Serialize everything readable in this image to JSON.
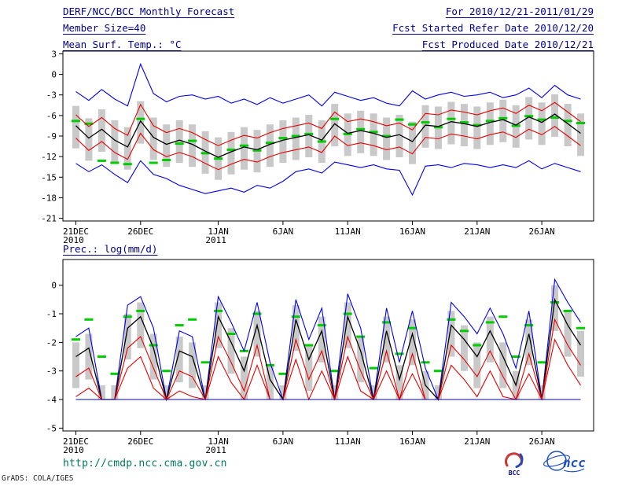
{
  "header": {
    "title": "DERF/NCC/BCC Monthly Forecast",
    "for_range": "For 2010/12/21-2011/01/29",
    "member_size": "Member Size=40",
    "fcst_started": "Fcst Started Refer Date 2010/12/20",
    "fcst_produced": "Fcst Produced Date 2010/12/21"
  },
  "footer": {
    "url": "http://cmdp.ncc.cma.gov.cn",
    "credit": "GrADS: COLA/IGES",
    "logos": {
      "bcc": "BCC",
      "ncc": "ncc"
    }
  },
  "colors": {
    "header": "#00008b",
    "url": "#007a5e",
    "frame": "#000000",
    "bar": "#c9c9c9",
    "obs_green": "#00cc00",
    "ens_blue": "#0000f0",
    "quartile_red": "#e60000",
    "mean_black": "#000000"
  },
  "chart_data": [
    {
      "type": "line",
      "title": "Mean Surf. Temp.: °C",
      "xlabel": "",
      "ylabel": "",
      "grid": false,
      "legend": "none",
      "n": 40,
      "ylim": [
        -21.4,
        3.4
      ],
      "yticks": [
        3,
        0,
        -3,
        -6,
        -9,
        -12,
        -15,
        -18,
        -21
      ],
      "xticks": [
        {
          "i": 0,
          "label": "21DEC",
          "sub": "2010"
        },
        {
          "i": 5,
          "label": "26DEC"
        },
        {
          "i": 11,
          "label": "1JAN",
          "sub": "2011"
        },
        {
          "i": 16,
          "label": "6JAN"
        },
        {
          "i": 21,
          "label": "11JAN"
        },
        {
          "i": 26,
          "label": "16JAN"
        },
        {
          "i": 31,
          "label": "21JAN"
        },
        {
          "i": 36,
          "label": "26JAN"
        }
      ],
      "bars": {
        "name": "ensemble-spread",
        "color": "#c9c9c9",
        "low": [
          -10.8,
          -12.6,
          -11.3,
          -12.9,
          -13.9,
          -10.1,
          -12.5,
          -13.5,
          -12.9,
          -13.5,
          -14.5,
          -15.4,
          -14.6,
          -13.9,
          -14.3,
          -13.5,
          -12.9,
          -12.5,
          -12.1,
          -12.9,
          -10.5,
          -11.9,
          -11.5,
          -11.9,
          -12.5,
          -12.1,
          -13.1,
          -10.7,
          -10.9,
          -10.2,
          -10.5,
          -10.9,
          -10.3,
          -9.9,
          -10.7,
          -9.5,
          -10.3,
          -9.1,
          -10.5,
          -11.9
        ],
        "high": [
          -4.6,
          -6.4,
          -5.1,
          -6.7,
          -7.7,
          -3.9,
          -6.3,
          -7.3,
          -6.7,
          -7.3,
          -8.3,
          -9.2,
          -8.4,
          -7.7,
          -8.1,
          -7.3,
          -6.7,
          -6.3,
          -5.9,
          -6.7,
          -4.3,
          -5.7,
          -5.3,
          -5.7,
          -6.3,
          -5.9,
          -6.9,
          -4.5,
          -4.7,
          -4.0,
          -4.3,
          -4.7,
          -4.1,
          -3.7,
          -4.5,
          -3.3,
          -4.1,
          -2.9,
          -4.3,
          -5.7
        ]
      },
      "obs": {
        "name": "observation",
        "color": "#00cc00",
        "values": [
          -6.8,
          -7.2,
          -12.6,
          -12.9,
          -13.1,
          -6.5,
          -12.9,
          -12.5,
          -10.1,
          -9.7,
          -11.5,
          -12.3,
          -11.0,
          -10.4,
          -11.1,
          -10.0,
          -9.3,
          -9.0,
          -8.7,
          -9.8,
          -6.5,
          -8.7,
          -8.0,
          -8.4,
          -9.0,
          -6.6,
          -7.3,
          -7.0,
          -7.7,
          -6.5,
          -7.0,
          -7.4,
          -6.8,
          -6.4,
          -7.5,
          -6.1,
          -6.6,
          -6.3,
          -6.8,
          -7.1
        ]
      },
      "series": [
        {
          "name": "ens-max",
          "color": "#0000f0",
          "width": 1.1,
          "values": [
            -2.5,
            -3.8,
            -2.2,
            -3.6,
            -4.6,
            1.5,
            -2.8,
            -4.0,
            -3.2,
            -3.0,
            -3.6,
            -3.2,
            -4.2,
            -3.6,
            -4.4,
            -3.4,
            -4.2,
            -3.6,
            -3.0,
            -4.6,
            -2.6,
            -3.2,
            -3.8,
            -3.4,
            -4.2,
            -4.6,
            -2.4,
            -3.6,
            -3.0,
            -2.6,
            -3.2,
            -3.0,
            -2.6,
            -3.4,
            -3.0,
            -2.0,
            -3.4,
            -1.6,
            -3.0,
            -3.6
          ]
        },
        {
          "name": "upper-quartile",
          "color": "#e60000",
          "width": 1.1,
          "values": [
            -5.9,
            -7.6,
            -6.3,
            -7.9,
            -8.9,
            -4.4,
            -7.5,
            -8.5,
            -7.9,
            -8.5,
            -9.5,
            -10.4,
            -9.6,
            -8.9,
            -9.3,
            -8.5,
            -7.9,
            -7.5,
            -7.1,
            -7.9,
            -5.5,
            -6.9,
            -6.5,
            -6.9,
            -7.5,
            -7.1,
            -8.1,
            -5.7,
            -5.9,
            -5.2,
            -5.5,
            -5.9,
            -5.3,
            -4.9,
            -5.7,
            -4.5,
            -5.3,
            -4.1,
            -5.5,
            -6.9
          ]
        },
        {
          "name": "ens-mean",
          "color": "#000000",
          "width": 1.3,
          "values": [
            -7.5,
            -9.3,
            -8.0,
            -9.6,
            -10.6,
            -6.8,
            -9.2,
            -10.2,
            -9.6,
            -10.2,
            -11.2,
            -12.1,
            -11.3,
            -10.6,
            -11.0,
            -10.2,
            -9.6,
            -9.2,
            -8.8,
            -9.6,
            -7.2,
            -8.6,
            -8.2,
            -8.6,
            -9.2,
            -8.8,
            -9.8,
            -7.4,
            -7.6,
            -6.9,
            -7.2,
            -7.6,
            -7.0,
            -6.6,
            -7.4,
            -6.2,
            -7.0,
            -5.8,
            -7.2,
            -8.6
          ]
        },
        {
          "name": "lower-quartile",
          "color": "#e60000",
          "width": 1.1,
          "values": [
            -9.3,
            -11.1,
            -9.8,
            -11.4,
            -12.4,
            -8.6,
            -11.0,
            -12.0,
            -11.4,
            -12.0,
            -13.0,
            -13.9,
            -13.1,
            -12.4,
            -12.8,
            -12.0,
            -11.4,
            -11.0,
            -10.6,
            -11.4,
            -9.0,
            -10.4,
            -10.0,
            -10.4,
            -11.0,
            -10.6,
            -11.6,
            -9.2,
            -9.4,
            -8.7,
            -9.0,
            -9.4,
            -8.8,
            -8.4,
            -9.2,
            -8.0,
            -8.8,
            -7.6,
            -9.0,
            -10.4
          ]
        },
        {
          "name": "ens-min",
          "color": "#0000f0",
          "width": 1.1,
          "values": [
            -13.0,
            -14.2,
            -13.2,
            -14.6,
            -15.8,
            -12.6,
            -14.6,
            -15.2,
            -16.2,
            -16.8,
            -17.4,
            -17.0,
            -16.6,
            -17.2,
            -16.2,
            -16.6,
            -15.6,
            -14.2,
            -13.8,
            -14.4,
            -12.8,
            -13.2,
            -13.6,
            -13.2,
            -13.8,
            -14.0,
            -17.6,
            -13.4,
            -13.2,
            -13.6,
            -13.0,
            -13.2,
            -13.6,
            -13.2,
            -13.6,
            -12.6,
            -13.8,
            -13.0,
            -13.6,
            -14.2
          ]
        }
      ]
    },
    {
      "type": "line",
      "title": "Prec.: log(mm/d)",
      "xlabel": "",
      "ylabel": "",
      "grid": false,
      "legend": "none",
      "n": 40,
      "ylim": [
        -5.1,
        0.9
      ],
      "yticks": [
        0,
        -1,
        -2,
        -3,
        -4,
        -5
      ],
      "xticks": [
        {
          "i": 0,
          "label": "21DEC",
          "sub": "2010"
        },
        {
          "i": 5,
          "label": "26DEC"
        },
        {
          "i": 11,
          "label": "1JAN",
          "sub": "2011"
        },
        {
          "i": 16,
          "label": "6JAN"
        },
        {
          "i": 21,
          "label": "11JAN"
        },
        {
          "i": 26,
          "label": "16JAN"
        },
        {
          "i": 31,
          "label": "21JAN"
        },
        {
          "i": 36,
          "label": "26JAN"
        }
      ],
      "bars": {
        "name": "ensemble-spread",
        "color": "#c9c9c9",
        "low": [
          -3.6,
          -3.3,
          -4.0,
          -4.0,
          -2.6,
          -2.2,
          -3.3,
          -4.0,
          -3.4,
          -3.6,
          -4.0,
          -2.2,
          -3.1,
          -4.0,
          -2.5,
          -4.0,
          -4.0,
          -2.3,
          -3.7,
          -2.7,
          -4.0,
          -2.2,
          -3.4,
          -4.0,
          -2.7,
          -4.0,
          -2.8,
          -4.0,
          -4.0,
          -2.5,
          -3.0,
          -3.6,
          -2.7,
          -3.6,
          -4.0,
          -2.8,
          -4.0,
          -1.6,
          -2.5,
          -3.2
        ],
        "high": [
          -2.0,
          -1.7,
          -3.5,
          -3.5,
          -1.0,
          -0.6,
          -1.7,
          -3.5,
          -1.8,
          -2.0,
          -3.5,
          -0.6,
          -1.5,
          -2.5,
          -0.9,
          -2.8,
          -3.5,
          -0.7,
          -2.1,
          -1.1,
          -3.5,
          -0.6,
          -1.8,
          -3.5,
          -1.1,
          -2.8,
          -1.2,
          -3.0,
          -3.5,
          -0.9,
          -1.4,
          -2.0,
          -1.1,
          -2.0,
          -3.0,
          -1.2,
          -3.5,
          0.0,
          -0.9,
          -1.6
        ]
      },
      "obs": {
        "name": "observation",
        "color": "#00cc00",
        "values": [
          -1.9,
          -1.2,
          -2.5,
          -3.1,
          -1.1,
          -0.9,
          -2.1,
          -3.0,
          -1.4,
          -1.2,
          -2.7,
          -0.9,
          -1.7,
          -2.3,
          -1.0,
          -2.8,
          -3.1,
          -1.1,
          -2.1,
          -1.4,
          -3.0,
          -1.0,
          -1.8,
          -2.9,
          -1.3,
          -2.4,
          -1.5,
          -2.7,
          -3.0,
          -1.2,
          -1.6,
          -2.1,
          -1.3,
          -1.1,
          -2.5,
          -1.4,
          -2.7,
          -0.6,
          -0.9,
          -1.5
        ]
      },
      "series": [
        {
          "name": "ens-max",
          "color": "#0000f0",
          "width": 1.1,
          "values": [
            -1.8,
            -1.5,
            -4.0,
            -4.0,
            -0.7,
            -0.4,
            -1.5,
            -4.0,
            -1.6,
            -1.8,
            -4.0,
            -0.4,
            -1.3,
            -2.3,
            -0.6,
            -2.7,
            -4.0,
            -0.5,
            -1.9,
            -0.8,
            -4.0,
            -0.3,
            -1.5,
            -4.0,
            -0.8,
            -2.7,
            -0.9,
            -2.9,
            -4.0,
            -0.6,
            -1.1,
            -1.7,
            -0.8,
            -1.7,
            -2.9,
            -0.9,
            -4.0,
            0.2,
            -0.6,
            -1.3
          ]
        },
        {
          "name": "ens-mean",
          "color": "#000000",
          "width": 1.3,
          "values": [
            -2.5,
            -2.2,
            -4.0,
            -4.0,
            -1.5,
            -1.1,
            -2.2,
            -4.0,
            -2.3,
            -2.5,
            -4.0,
            -1.1,
            -2.0,
            -3.0,
            -1.4,
            -3.3,
            -4.0,
            -1.2,
            -2.6,
            -1.6,
            -4.0,
            -1.1,
            -2.3,
            -4.0,
            -1.6,
            -3.3,
            -1.7,
            -3.5,
            -4.0,
            -1.4,
            -1.9,
            -2.5,
            -1.6,
            -2.5,
            -3.5,
            -1.7,
            -4.0,
            -0.5,
            -1.4,
            -2.1
          ]
        },
        {
          "name": "upper-quartile",
          "color": "#e60000",
          "width": 1.1,
          "values": [
            -3.2,
            -2.9,
            -4.0,
            -4.0,
            -2.2,
            -1.8,
            -2.9,
            -4.0,
            -3.0,
            -3.2,
            -4.0,
            -1.8,
            -2.7,
            -3.7,
            -2.1,
            -4.0,
            -4.0,
            -1.9,
            -3.3,
            -2.3,
            -4.0,
            -1.8,
            -3.0,
            -4.0,
            -2.3,
            -4.0,
            -2.4,
            -4.0,
            -4.0,
            -2.1,
            -2.6,
            -3.2,
            -2.3,
            -3.2,
            -4.0,
            -2.4,
            -4.0,
            -1.2,
            -2.1,
            -2.8
          ]
        },
        {
          "name": "lower-quartile",
          "color": "#e60000",
          "width": 1.1,
          "values": [
            -3.9,
            -3.6,
            -4.0,
            -4.0,
            -2.9,
            -2.5,
            -3.6,
            -4.0,
            -3.7,
            -3.9,
            -4.0,
            -2.5,
            -3.4,
            -4.0,
            -2.8,
            -4.0,
            -4.0,
            -2.6,
            -4.0,
            -3.0,
            -4.0,
            -2.5,
            -3.7,
            -4.0,
            -3.0,
            -4.0,
            -3.1,
            -4.0,
            -4.0,
            -2.8,
            -3.3,
            -3.9,
            -3.0,
            -3.9,
            -4.0,
            -3.1,
            -4.0,
            -1.9,
            -2.8,
            -3.5
          ]
        },
        {
          "name": "ens-min",
          "color": "#0000c8",
          "width": 1.1,
          "values": [
            -4.0,
            -4.0,
            -4.0,
            -4.0,
            -4.0,
            -4.0,
            -4.0,
            -4.0,
            -4.0,
            -4.0,
            -4.0,
            -4.0,
            -4.0,
            -4.0,
            -4.0,
            -4.0,
            -4.0,
            -4.0,
            -4.0,
            -4.0,
            -4.0,
            -4.0,
            -4.0,
            -4.0,
            -4.0,
            -4.0,
            -4.0,
            -4.0,
            -4.0,
            -4.0,
            -4.0,
            -4.0,
            -4.0,
            -4.0,
            -4.0,
            -4.0,
            -4.0,
            -4.0,
            -4.0,
            -4.0
          ]
        }
      ]
    }
  ]
}
